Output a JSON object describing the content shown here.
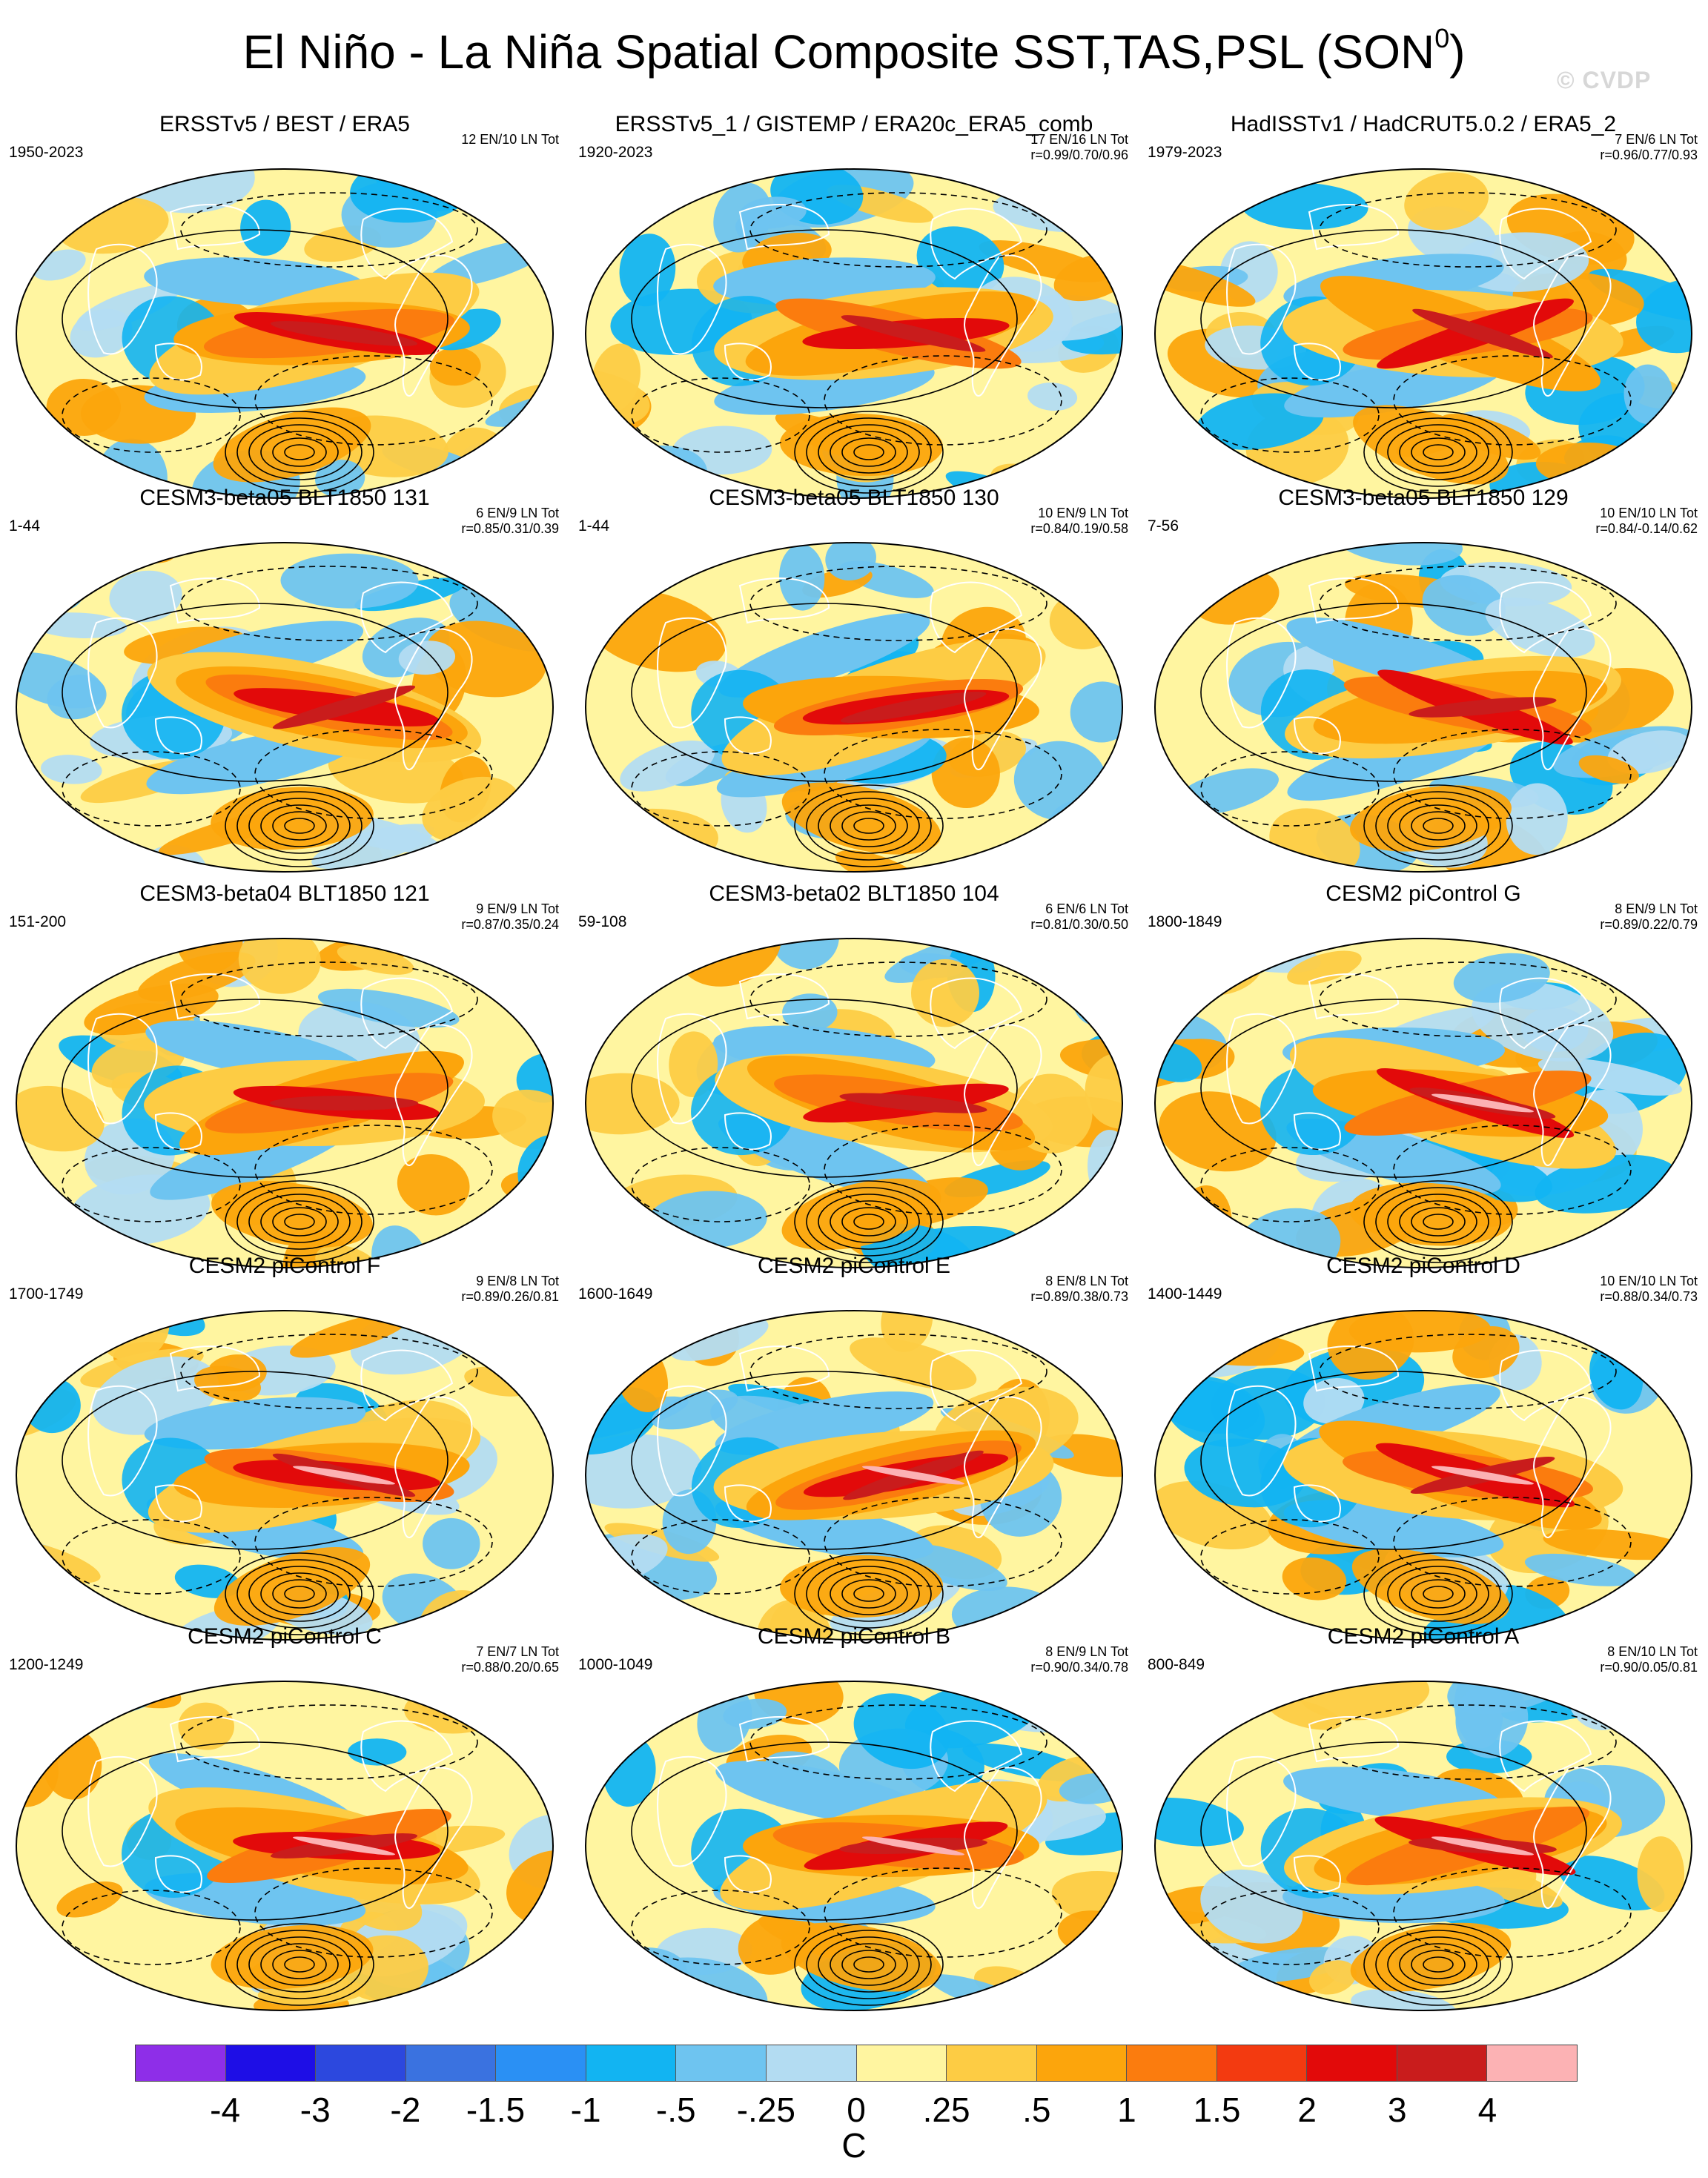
{
  "page": {
    "title_main": "El Niño - La Niña Spatial Composite SST,TAS,PSL (SON",
    "title_sup": "0",
    "title_end": ")",
    "watermark": "© CVDP"
  },
  "panels": [
    {
      "title": "ERSSTv5 / BEST / ERA5",
      "years": "1950-2023",
      "stats1": "12 EN/10 LN Tot",
      "stats2": ""
    },
    {
      "title": "ERSSTv5_1 / GISTEMP / ERA20c_ERA5_comb",
      "years": "1920-2023",
      "stats1": "17 EN/16 LN Tot",
      "stats2": "r=0.99/0.70/0.96"
    },
    {
      "title": "HadISSTv1 / HadCRUT5.0.2 / ERA5_2",
      "years": "1979-2023",
      "stats1": "7 EN/6 LN Tot",
      "stats2": "r=0.96/0.77/0.93"
    },
    {
      "title": "CESM3-beta05 BLT1850 131",
      "years": "1-44",
      "stats1": "6 EN/9 LN Tot",
      "stats2": "r=0.85/0.31/0.39"
    },
    {
      "title": "CESM3-beta05 BLT1850 130",
      "years": "1-44",
      "stats1": "10 EN/9 LN Tot",
      "stats2": "r=0.84/0.19/0.58"
    },
    {
      "title": "CESM3-beta05 BLT1850 129",
      "years": "7-56",
      "stats1": "10 EN/10 LN Tot",
      "stats2": "r=0.84/-0.14/0.62"
    },
    {
      "title": "CESM3-beta04 BLT1850 121",
      "years": "151-200",
      "stats1": "9 EN/9 LN Tot",
      "stats2": "r=0.87/0.35/0.24"
    },
    {
      "title": "CESM3-beta02 BLT1850 104",
      "years": "59-108",
      "stats1": "6 EN/6 LN Tot",
      "stats2": "r=0.81/0.30/0.50"
    },
    {
      "title": "CESM2 piControl G",
      "years": "1800-1849",
      "stats1": "8 EN/9 LN Tot",
      "stats2": "r=0.89/0.22/0.79"
    },
    {
      "title": "CESM2 piControl F",
      "years": "1700-1749",
      "stats1": "9 EN/8 LN Tot",
      "stats2": "r=0.89/0.26/0.81"
    },
    {
      "title": "CESM2 piControl E",
      "years": "1600-1649",
      "stats1": "8 EN/8 LN Tot",
      "stats2": "r=0.89/0.38/0.73"
    },
    {
      "title": "CESM2 piControl D",
      "years": "1400-1449",
      "stats1": "10 EN/10 LN Tot",
      "stats2": "r=0.88/0.34/0.73"
    },
    {
      "title": "CESM2 piControl C",
      "years": "1200-1249",
      "stats1": "7 EN/7 LN Tot",
      "stats2": "r=0.88/0.20/0.65"
    },
    {
      "title": "CESM2 piControl B",
      "years": "1000-1049",
      "stats1": "8 EN/9 LN Tot",
      "stats2": "r=0.90/0.34/0.78"
    },
    {
      "title": "CESM2 piControl A",
      "years": "800-849",
      "stats1": "8 EN/10 LN Tot",
      "stats2": "r=0.90/0.05/0.81"
    }
  ],
  "colorbar": {
    "colors": [
      "#8e2ee8",
      "#1e0ee6",
      "#2c48de",
      "#3a72e0",
      "#2a90f4",
      "#12b4f2",
      "#6ec4f0",
      "#b3dcf2",
      "#fff5a0",
      "#fdcc44",
      "#fca50c",
      "#fb7c0e",
      "#f33a10",
      "#e20a0a",
      "#c91c1c",
      "#fcb2b4"
    ],
    "labels": [
      "-4",
      "-3",
      "-2",
      "-1.5",
      "-1",
      "-.5",
      "-.25",
      "0",
      ".25",
      ".5",
      "1",
      "1.5",
      "2",
      "3",
      "4"
    ],
    "units": "C"
  },
  "map_palette": {
    "ocean_bg": "#fff5a0",
    "cold": [
      "#b3dcf2",
      "#6ec4f0",
      "#12b4f2",
      "#2a90f4"
    ],
    "warm": [
      "#fdcc44",
      "#fca50c",
      "#fb7c0e",
      "#f33a10",
      "#e20a0a",
      "#c91c1c",
      "#fcb2b4"
    ],
    "contour": "#000000",
    "coast": "#ffffff"
  }
}
